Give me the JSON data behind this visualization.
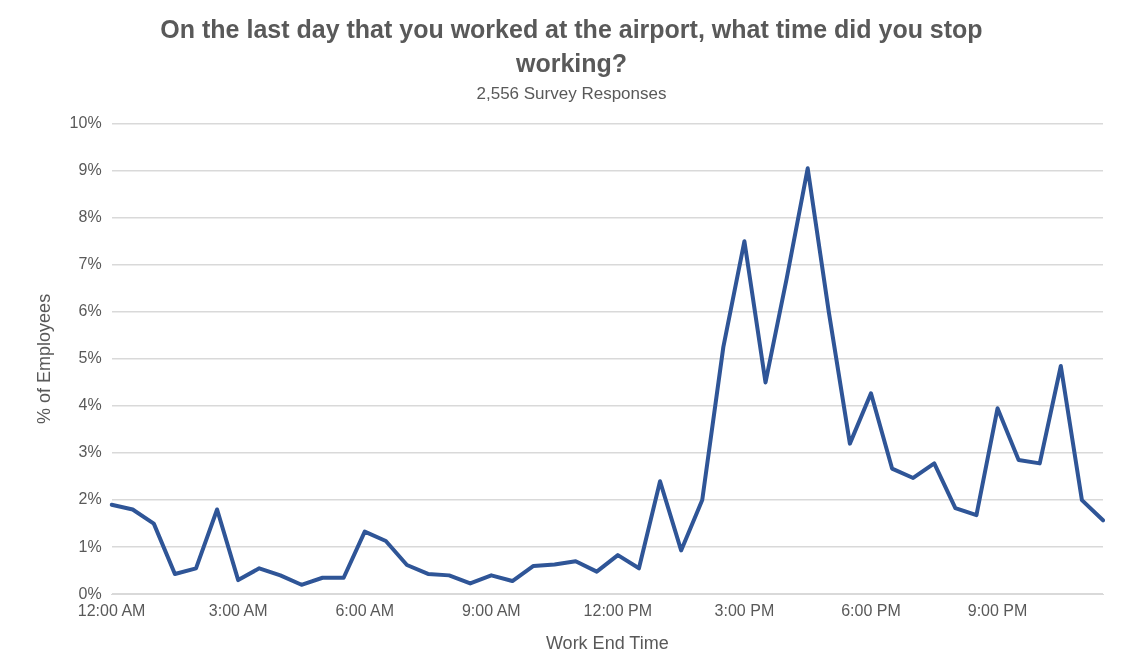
{
  "chart_data": {
    "type": "line",
    "title": "On the last day that you worked at the airport, what time did you stop working?",
    "subtitle": "2,556 Survey Responses",
    "xlabel": "Work End Time",
    "ylabel": "% of Employees",
    "categories": [
      "12:00 AM",
      null,
      null,
      null,
      null,
      null,
      "3:00 AM",
      null,
      null,
      null,
      null,
      null,
      "6:00 AM",
      null,
      null,
      null,
      null,
      null,
      "9:00 AM",
      null,
      null,
      null,
      null,
      null,
      "12:00 PM",
      null,
      null,
      null,
      null,
      null,
      "3:00 PM",
      null,
      null,
      null,
      null,
      null,
      "6:00 PM",
      null,
      null,
      null,
      null,
      null,
      "9:00 PM",
      null,
      null,
      null,
      null,
      null
    ],
    "series": [
      {
        "color": "#2f5597",
        "values": [
          1.9,
          1.8,
          1.5,
          0.43,
          0.55,
          1.8,
          0.3,
          0.55,
          0.4,
          0.2,
          0.35,
          0.35,
          1.33,
          1.13,
          0.62,
          0.43,
          0.4,
          0.23,
          0.4,
          0.28,
          0.6,
          0.63,
          0.7,
          0.48,
          0.83,
          0.55,
          2.4,
          0.93,
          2.0,
          5.25,
          7.5,
          4.5,
          6.7,
          9.05,
          6.0,
          3.2,
          4.27,
          2.67,
          2.47,
          2.78,
          1.83,
          1.68,
          3.95,
          2.85,
          2.78,
          4.85,
          2.0,
          1.57
        ]
      }
    ],
    "ylim": [
      0,
      10
    ],
    "yticks": [
      {
        "value": 0,
        "label": "0%"
      },
      {
        "value": 1,
        "label": "1%"
      },
      {
        "value": 2,
        "label": "2%"
      },
      {
        "value": 3,
        "label": "3%"
      },
      {
        "value": 4,
        "label": "4%"
      },
      {
        "value": 5,
        "label": "5%"
      },
      {
        "value": 6,
        "label": "6%"
      },
      {
        "value": 7,
        "label": "7%"
      },
      {
        "value": 8,
        "label": "8%"
      },
      {
        "value": 9,
        "label": "9%"
      },
      {
        "value": 10,
        "label": "10%"
      }
    ],
    "grid": "y",
    "legend": false,
    "marker": "none",
    "line_style": "solid"
  }
}
